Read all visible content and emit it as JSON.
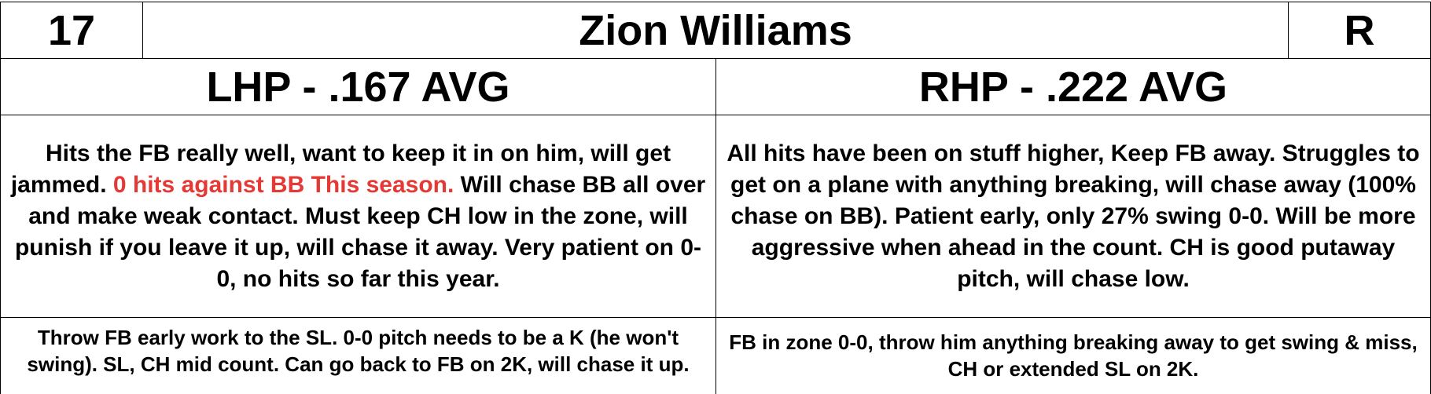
{
  "player": {
    "number": "17",
    "name": "Zion Williams",
    "bats": "R"
  },
  "lhp": {
    "header": "LHP - .167 AVG",
    "notes_part1": "Hits the FB really well, want to keep it in on him, will get jammed.",
    "notes_highlight": "0 hits against BB This season.",
    "notes_part2": "Will chase BB all over and make weak contact. Must keep CH low in the zone, will punish if you leave it up, will chase it away. Very patient on 0-0, no hits so far this year.",
    "plan": "Throw FB early work to the SL. 0-0 pitch needs to be a K (he won't swing). SL, CH mid count. Can go back to FB on 2K, will chase it up."
  },
  "rhp": {
    "header": "RHP - .222 AVG",
    "notes": "All hits have been on stuff higher, Keep FB away. Struggles to get on a plane with anything breaking, will chase away  (100% chase on BB). Patient early, only 27% swing 0-0. Will be more aggressive when ahead in the count. CH is good putaway pitch, will chase low.",
    "plan": "FB in zone 0-0, throw him anything breaking away to get swing & miss, CH or extended SL on 2K."
  },
  "colors": {
    "highlight": "#e53935",
    "grid": "#000000"
  }
}
